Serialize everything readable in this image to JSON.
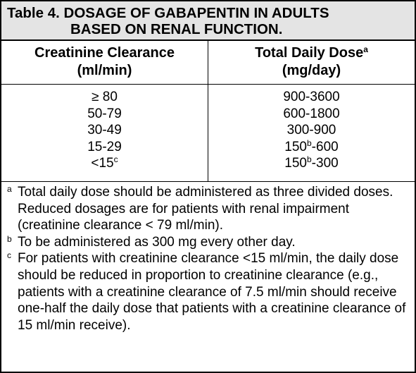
{
  "title": {
    "line1": "Table 4. DOSAGE OF GABAPENTIN IN ADULTS",
    "line2": "BASED ON RENAL FUNCTION."
  },
  "columns": [
    {
      "line1": "Creatinine Clearance",
      "line2": "(ml/min)",
      "sup": ""
    },
    {
      "line1": "Total Daily Dose",
      "line2": "(mg/day)",
      "sup": "a"
    }
  ],
  "rows": [
    {
      "clearance": "≥ 80",
      "clearance_sup": "",
      "dose_pre": "900-3600",
      "dose_sup": "",
      "dose_post": ""
    },
    {
      "clearance": "50-79",
      "clearance_sup": "",
      "dose_pre": "600-1800",
      "dose_sup": "",
      "dose_post": ""
    },
    {
      "clearance": "30-49",
      "clearance_sup": "",
      "dose_pre": "300-900",
      "dose_sup": "",
      "dose_post": ""
    },
    {
      "clearance": "15-29",
      "clearance_sup": "",
      "dose_pre": "150",
      "dose_sup": "b",
      "dose_post": "-600"
    },
    {
      "clearance": "<15",
      "clearance_sup": "c",
      "dose_pre": "150",
      "dose_sup": "b",
      "dose_post": "-300"
    }
  ],
  "footnotes": [
    {
      "mark": "a",
      "text": "Total daily dose should be administered as three divided doses. Reduced dosages are for patients with renal impairment (creatinine clearance < 79 ml/min)."
    },
    {
      "mark": "b",
      "text": "To be administered as 300 mg every other day."
    },
    {
      "mark": "c",
      "text": "For patients with creatinine clearance <15 ml/min, the daily dose should be reduced in proportion to creatinine clearance (e.g., patients with a creatinine clearance of 7.5 ml/min should receive one-half the daily dose that patients with a creatinine clearance of 15 ml/min receive)."
    }
  ]
}
